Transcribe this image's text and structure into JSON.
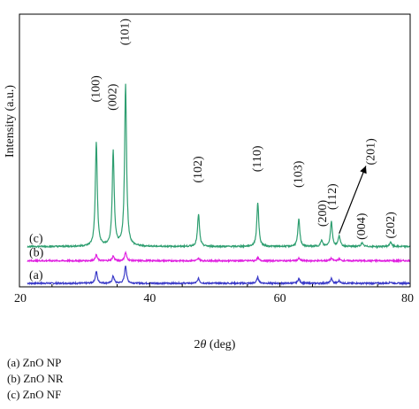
{
  "chart_data": {
    "type": "line",
    "title": "",
    "xlabel": "2θ (deg)",
    "xlabel_prefix": "2",
    "xlabel_theta": "θ",
    "xlabel_suffix": " (deg)",
    "ylabel": "Intensity (a.u.)",
    "xlim": [
      20,
      80
    ],
    "xticks": [
      20,
      40,
      60,
      80
    ],
    "y_ticks_shown": false,
    "grid": false,
    "series": [
      {
        "label": "(a)",
        "color": "#3a3ac8",
        "baseline": 0.03,
        "peaks": [
          {
            "two_theta": 31.8,
            "intensity": 0.1
          },
          {
            "two_theta": 34.4,
            "intensity": 0.06
          },
          {
            "two_theta": 36.3,
            "intensity": 0.15
          },
          {
            "two_theta": 47.5,
            "intensity": 0.04
          },
          {
            "two_theta": 56.6,
            "intensity": 0.05
          },
          {
            "two_theta": 62.9,
            "intensity": 0.04
          },
          {
            "two_theta": 67.9,
            "intensity": 0.04
          },
          {
            "two_theta": 69.1,
            "intensity": 0.02
          },
          {
            "two_theta": 77.0,
            "intensity": 0.01
          }
        ]
      },
      {
        "label": "(b)",
        "color": "#e020e0",
        "baseline": 0.22,
        "peaks": [
          {
            "two_theta": 31.8,
            "intensity": 0.05
          },
          {
            "two_theta": 34.4,
            "intensity": 0.04
          },
          {
            "two_theta": 36.3,
            "intensity": 0.07
          },
          {
            "two_theta": 47.5,
            "intensity": 0.02
          },
          {
            "two_theta": 56.6,
            "intensity": 0.025
          },
          {
            "two_theta": 62.9,
            "intensity": 0.02
          },
          {
            "two_theta": 67.9,
            "intensity": 0.02
          },
          {
            "two_theta": 69.1,
            "intensity": 0.015
          }
        ]
      },
      {
        "label": "(c)",
        "color": "#2e9e70",
        "baseline": 0.34,
        "peaks": [
          {
            "two_theta": 31.8,
            "intensity": 0.88
          },
          {
            "two_theta": 34.4,
            "intensity": 0.8
          },
          {
            "two_theta": 36.3,
            "intensity": 1.36
          },
          {
            "two_theta": 47.5,
            "intensity": 0.27
          },
          {
            "two_theta": 56.6,
            "intensity": 0.37
          },
          {
            "two_theta": 62.9,
            "intensity": 0.23
          },
          {
            "two_theta": 66.4,
            "intensity": 0.05
          },
          {
            "two_theta": 67.9,
            "intensity": 0.21
          },
          {
            "two_theta": 69.1,
            "intensity": 0.09
          },
          {
            "two_theta": 72.6,
            "intensity": 0.03
          },
          {
            "two_theta": 77.0,
            "intensity": 0.04
          }
        ]
      }
    ],
    "annotations": [
      {
        "text": "(100)",
        "two_theta": 31.8,
        "y": 1.67
      },
      {
        "text": "(002)",
        "two_theta": 34.4,
        "y": 1.6
      },
      {
        "text": "(101)",
        "two_theta": 36.3,
        "y": 2.15
      },
      {
        "text": "(102)",
        "two_theta": 47.5,
        "y": 0.99
      },
      {
        "text": "(110)",
        "two_theta": 56.6,
        "y": 1.08
      },
      {
        "text": "(103)",
        "two_theta": 62.9,
        "y": 0.95
      },
      {
        "text": "(200)",
        "two_theta": 66.6,
        "y": 0.62
      },
      {
        "text": "(112)",
        "two_theta": 68.1,
        "y": 0.76
      },
      {
        "text": "(004)",
        "two_theta": 72.6,
        "y": 0.51
      },
      {
        "text": "(202)",
        "two_theta": 77.1,
        "y": 0.52
      },
      {
        "text": "(201)",
        "two_theta": 74.0,
        "y": 1.14,
        "arrow_from": [
          69.1,
          0.45
        ],
        "arrow_to": [
          73.2,
          1.02
        ]
      }
    ]
  },
  "legend": {
    "items": [
      "(a) ZnO NP",
      "(b) ZnO NR",
      "(c) ZnO NF"
    ]
  }
}
